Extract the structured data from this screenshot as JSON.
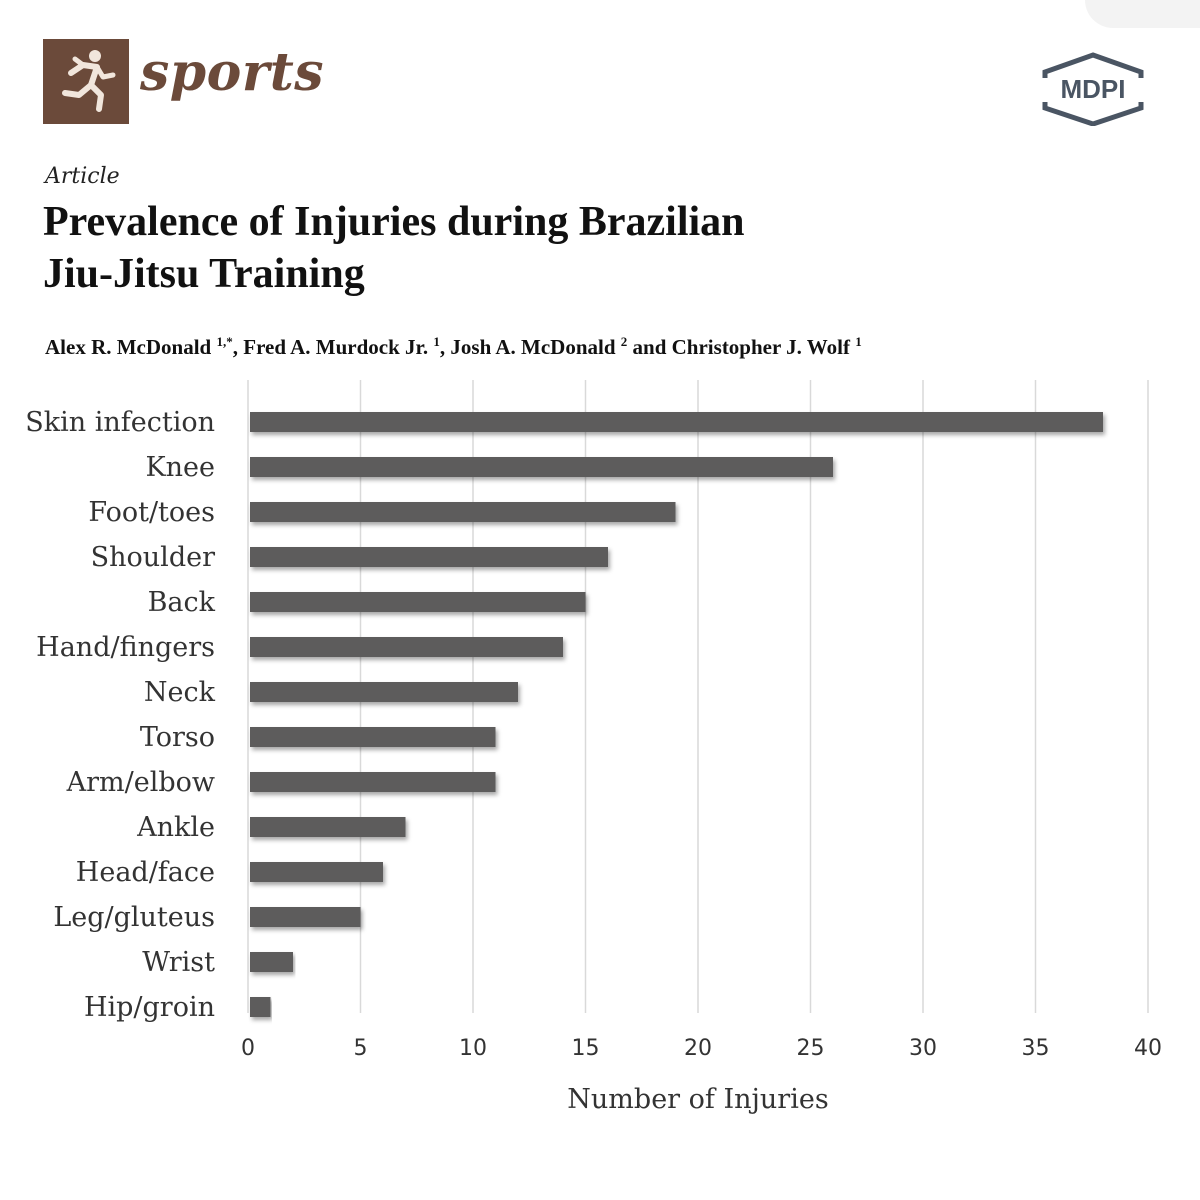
{
  "header": {
    "journal_name": "sports",
    "publisher": "MDPI",
    "article_type": "Article",
    "title_line1": "Prevalence of Injuries during Brazilian",
    "title_line2": "Jiu-Jitsu Training",
    "authors": [
      {
        "name": "Alex R. McDonald",
        "affil": "1,*",
        "sep": ", "
      },
      {
        "name": "Fred A. Murdock Jr.",
        "affil": "1",
        "sep": ", "
      },
      {
        "name": "Josh A. McDonald",
        "affil": "2",
        "sep": " and "
      },
      {
        "name": "Christopher J. Wolf",
        "affil": "1",
        "sep": ""
      }
    ]
  },
  "colors": {
    "brand": "#6b4a3a",
    "bar": "#5d5b5b",
    "grid": "#d9d9d9",
    "publisher": "#4a5563"
  },
  "icons": {
    "journal": "runner-icon",
    "publisher": "mdpi-logo-icon"
  },
  "chart_data": {
    "type": "bar",
    "orientation": "horizontal",
    "categories": [
      "Skin infection",
      "Knee",
      "Foot/toes",
      "Shoulder",
      "Back",
      "Hand/fingers",
      "Neck",
      "Torso",
      "Arm/elbow",
      "Ankle",
      "Head/face",
      "Leg/gluteus",
      "Wrist",
      "Hip/groin"
    ],
    "values": [
      38,
      26,
      19,
      16,
      15,
      14,
      12,
      11,
      11,
      7,
      6,
      5,
      2,
      1
    ],
    "xlabel": "Number of Injuries",
    "ylabel": "",
    "xlim": [
      0,
      40
    ],
    "xticks": [
      0,
      5,
      10,
      15,
      20,
      25,
      30,
      35,
      40
    ],
    "grid": "vertical",
    "title": ""
  }
}
